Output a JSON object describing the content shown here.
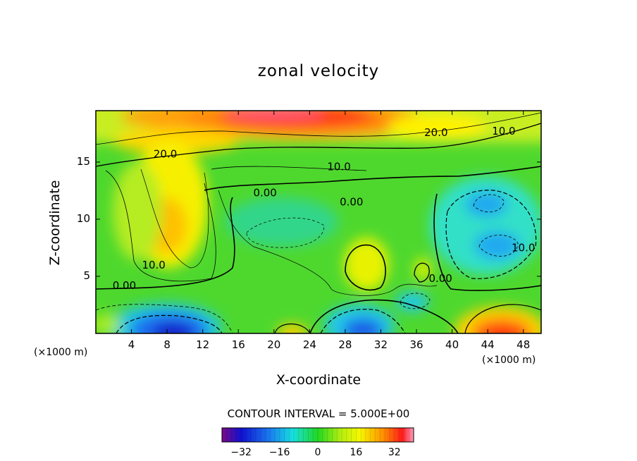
{
  "chart_data": {
    "type": "heatmap",
    "title": "zonal velocity",
    "xlabel": "X-coordinate",
    "ylabel": "Z-coordinate",
    "x_unit_left": "(×1000 m)",
    "x_unit_right": "(×1000 m)",
    "xlim": [
      0,
      50
    ],
    "ylim": [
      0,
      19.5
    ],
    "x_ticks": [
      "4",
      "8",
      "12",
      "16",
      "20",
      "24",
      "28",
      "32",
      "36",
      "40",
      "44",
      "48"
    ],
    "x_tick_values": [
      4,
      8,
      12,
      16,
      20,
      24,
      28,
      32,
      36,
      40,
      44,
      48
    ],
    "y_ticks": [
      "5",
      "10",
      "15"
    ],
    "y_tick_values": [
      5,
      10,
      15
    ],
    "contour_interval_text": "CONTOUR INTERVAL = 5.000E+00",
    "contour_labels": [
      {
        "text": "20.0",
        "x": 7.8,
        "z": 15.7
      },
      {
        "text": "20.0",
        "x": 38.2,
        "z": 17.6
      },
      {
        "text": "10.0",
        "x": 45.8,
        "z": 17.7
      },
      {
        "text": "10.0",
        "x": 27.3,
        "z": 14.6
      },
      {
        "text": "0.00",
        "x": 19.0,
        "z": 12.3
      },
      {
        "text": "0.00",
        "x": 28.7,
        "z": 11.5
      },
      {
        "text": "10.0",
        "x": 6.5,
        "z": 6.0
      },
      {
        "text": "0.00",
        "x": 3.2,
        "z": 4.2
      },
      {
        "text": "0.00",
        "x": 38.7,
        "z": 4.8
      },
      {
        "text": "10.0",
        "x": 48.0,
        "z": 7.5
      }
    ],
    "features": [
      {
        "name": "upper jet",
        "x": 24,
        "z": 18.5,
        "value": 30
      },
      {
        "name": "left maximum",
        "x": 7.5,
        "z": 9.5,
        "value": 16
      },
      {
        "name": "central maximum",
        "x": 30.5,
        "z": 6.5,
        "value": 10
      },
      {
        "name": "right minimum upper",
        "x": 44,
        "z": 11.5,
        "value": -12
      },
      {
        "name": "right minimum lower",
        "x": 45,
        "z": 7.8,
        "value": -12
      },
      {
        "name": "bottom-left minimum",
        "x": 9.5,
        "z": 0.8,
        "value": -32
      },
      {
        "name": "bottom-center minimum",
        "x": 29.5,
        "z": 0.8,
        "value": -26
      },
      {
        "name": "small minimum",
        "x": 35.5,
        "z": 2.8,
        "value": -12
      },
      {
        "name": "bottom-right maximum",
        "x": 45,
        "z": 0.6,
        "value": 30
      },
      {
        "name": "small bottom maximum",
        "x": 22,
        "z": 0.5,
        "value": 12
      }
    ],
    "colorbar": {
      "range": [
        -40,
        40
      ],
      "ticks": [
        "−32",
        "−16",
        "0",
        "16",
        "32"
      ],
      "tick_values": [
        -32,
        -16,
        0,
        16,
        32
      ]
    }
  }
}
